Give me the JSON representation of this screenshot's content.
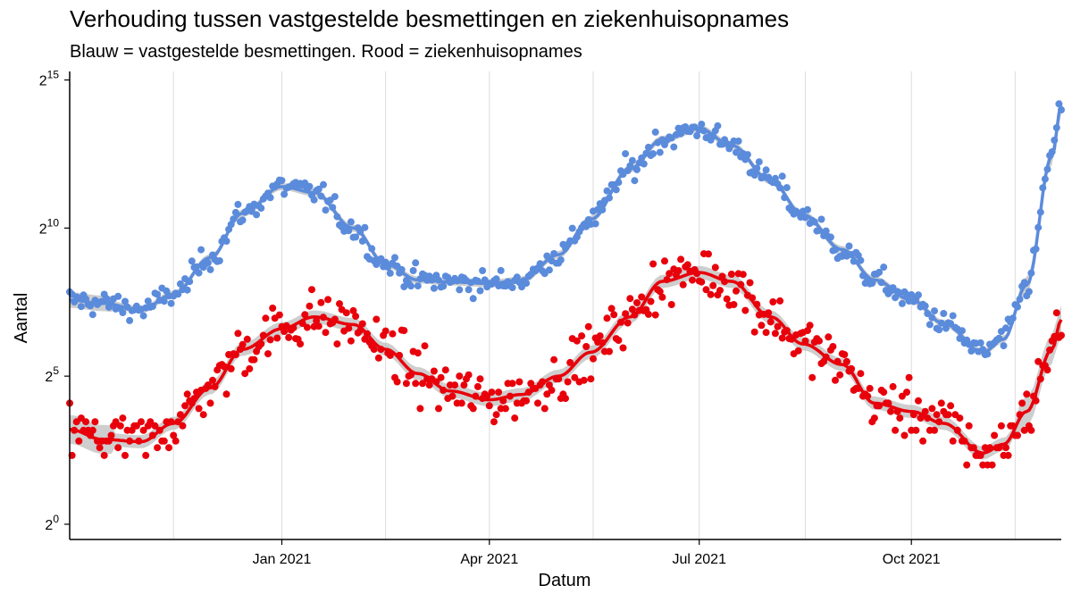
{
  "chart_data": {
    "type": "scatter",
    "title": "Verhouding tussen vastgestelde besmettingen en ziekenhuisopnames",
    "subtitle": "Blauw = vastgestelde besmettingen. Rood = ziekenhuisopnames",
    "xlabel": "Datum",
    "ylabel": "Aantal",
    "x_range": [
      "2020-10-01",
      "2021-12-05"
    ],
    "y_scale": "log2",
    "y_range": [
      0.7,
      40000
    ],
    "grid": "vertical only",
    "x_ticks": [
      {
        "date": "2021-01-01",
        "label": "Jan 2021"
      },
      {
        "date": "2021-04-01",
        "label": "Apr 2021"
      },
      {
        "date": "2021-07-01",
        "label": "Jul 2021"
      },
      {
        "date": "2021-10-01",
        "label": "Oct 2021"
      }
    ],
    "y_ticks": [
      {
        "value": 1,
        "base": "2",
        "exp": "0"
      },
      {
        "value": 32,
        "base": "2",
        "exp": "5"
      },
      {
        "value": 1024,
        "base": "2",
        "exp": "10"
      },
      {
        "value": 32768,
        "base": "2",
        "exp": "15"
      }
    ],
    "series": [
      {
        "color": "#5B8BDB",
        "smooth_color": "#5B8BDB",
        "points": [
          [
            "2020-10-01",
            190
          ],
          [
            "2020-10-15",
            176
          ],
          [
            "2020-11-01",
            152
          ],
          [
            "2020-11-15",
            218
          ],
          [
            "2020-12-01",
            512
          ],
          [
            "2020-12-15",
            1449
          ],
          [
            "2021-01-01",
            2700
          ],
          [
            "2021-01-15",
            2350
          ],
          [
            "2021-02-01",
            1024
          ],
          [
            "2021-02-15",
            440
          ],
          [
            "2021-03-01",
            304
          ],
          [
            "2021-03-15",
            290
          ],
          [
            "2021-04-01",
            280
          ],
          [
            "2021-04-15",
            304
          ],
          [
            "2021-05-01",
            550
          ],
          [
            "2021-05-15",
            1260
          ],
          [
            "2021-06-01",
            4096
          ],
          [
            "2021-06-15",
            8192
          ],
          [
            "2021-07-01",
            10500
          ],
          [
            "2021-07-15",
            7100
          ],
          [
            "2021-08-01",
            3100
          ],
          [
            "2021-08-15",
            1400
          ],
          [
            "2021-09-01",
            620
          ],
          [
            "2021-09-15",
            304
          ],
          [
            "2021-10-01",
            190
          ],
          [
            "2021-10-15",
            110
          ],
          [
            "2021-11-01",
            56
          ],
          [
            "2021-11-10",
            76
          ],
          [
            "2021-11-20",
            270
          ],
          [
            "2021-12-01",
            5500
          ],
          [
            "2021-12-05",
            18000
          ]
        ]
      },
      {
        "color": "#E8000B",
        "smooth_color": "#E8000B",
        "points": [
          [
            "2020-10-01",
            9.2
          ],
          [
            "2020-10-15",
            7.3
          ],
          [
            "2020-11-01",
            6.9
          ],
          [
            "2020-11-15",
            10.6
          ],
          [
            "2020-12-01",
            24.3
          ],
          [
            "2020-12-15",
            60
          ],
          [
            "2021-01-01",
            97
          ],
          [
            "2021-01-15",
            128
          ],
          [
            "2021-02-01",
            107
          ],
          [
            "2021-02-15",
            60
          ],
          [
            "2021-03-01",
            34
          ],
          [
            "2021-03-15",
            22.6
          ],
          [
            "2021-04-01",
            18.4
          ],
          [
            "2021-04-15",
            20.8
          ],
          [
            "2021-05-01",
            32
          ],
          [
            "2021-05-15",
            56
          ],
          [
            "2021-06-01",
            128
          ],
          [
            "2021-06-15",
            294
          ],
          [
            "2021-07-01",
            362
          ],
          [
            "2021-07-15",
            294
          ],
          [
            "2021-08-01",
            128
          ],
          [
            "2021-08-15",
            68
          ],
          [
            "2021-09-01",
            42
          ],
          [
            "2021-09-15",
            17
          ],
          [
            "2021-10-01",
            14
          ],
          [
            "2021-10-15",
            10.6
          ],
          [
            "2021-11-01",
            5.3
          ],
          [
            "2021-11-10",
            6.5
          ],
          [
            "2021-11-20",
            14
          ],
          [
            "2021-12-01",
            60
          ],
          [
            "2021-12-05",
            120
          ]
        ]
      }
    ]
  }
}
